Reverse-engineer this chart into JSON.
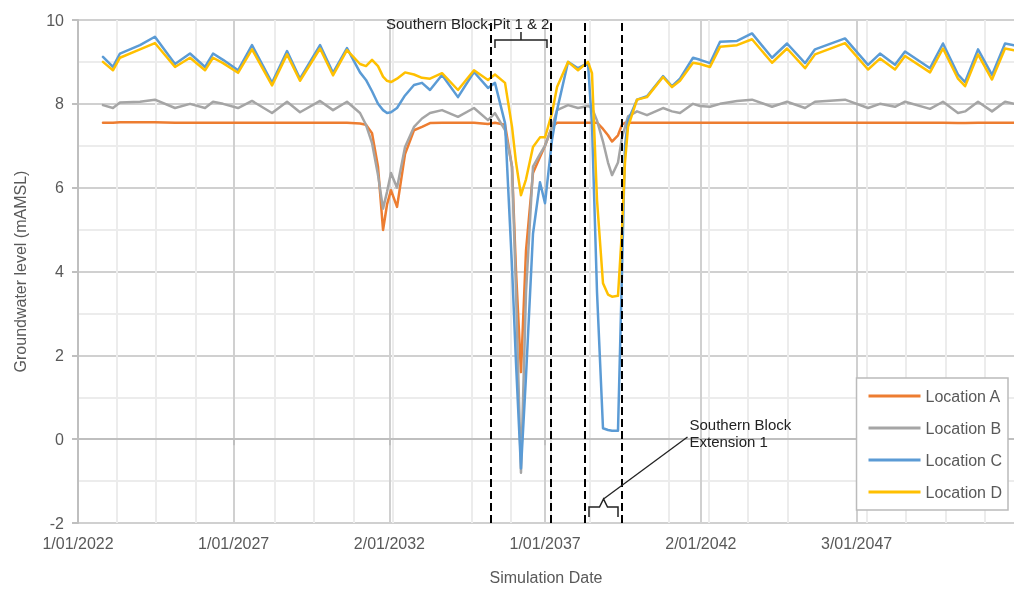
{
  "chart_data": {
    "type": "line",
    "xlabel": "Simulation Date",
    "ylabel": "Groundwater level (mAMSL)",
    "x": [
      "2022-10-21",
      "2023-02-15",
      "2023-05-08",
      "2023-12-29",
      "2024-06-21",
      "2025-02-12",
      "2025-08-07",
      "2026-01-30",
      "2026-05-04",
      "2026-08-29",
      "2027-02-21",
      "2027-08-04",
      "2028-03-26",
      "2028-09-18",
      "2029-02-17",
      "2029-10-10",
      "2030-03-11",
      "2030-08-22",
      "2031-01-22",
      "2031-04-02",
      "2031-06-12",
      "2031-08-21",
      "2031-10-19",
      "2031-12-05",
      "2032-01-20",
      "2032-03-31",
      "2032-07-03",
      "2032-10-16",
      "2033-01-18",
      "2033-04-22",
      "2033-09-10",
      "2034-03-16",
      "2034-09-20",
      "2035-03-03",
      "2035-05-24",
      "2035-09-19",
      "2035-12-10",
      "2036-01-26",
      "2036-03-24",
      "2036-05-22",
      "2036-08-12",
      "2036-11-02",
      "2036-12-31",
      "2037-03-23",
      "2037-05-21",
      "2037-09-27",
      "2038-01-22",
      "2038-05-19",
      "2038-07-05",
      "2038-09-02",
      "2038-11-11",
      "2039-01-09",
      "2039-02-25",
      "2039-05-06",
      "2039-06-22",
      "2039-07-27",
      "2039-09-01",
      "2039-12-15",
      "2040-04-10",
      "2040-10-15",
      "2041-01-29",
      "2041-05-02",
      "2041-10-02",
      "2041-12-23",
      "2042-04-19",
      "2042-08-15",
      "2043-03-02",
      "2043-08-25",
      "2044-04-16",
      "2044-10-09",
      "2045-05-08",
      "2045-09-02",
      "2046-08-20",
      "2047-05-17",
      "2047-10-04",
      "2048-03-28",
      "2048-07-24",
      "2049-05-13",
      "2049-10-12",
      "2050-04-06",
      "2050-06-28",
      "2050-11-27",
      "2051-05-10",
      "2051-10-10",
      "2052-01-23"
    ],
    "series": [
      {
        "name": "Location A",
        "color": "#ed7d31",
        "values": [
          7.55,
          7.55,
          7.56,
          7.56,
          7.56,
          7.55,
          7.55,
          7.55,
          7.55,
          7.55,
          7.55,
          7.55,
          7.55,
          7.55,
          7.55,
          7.55,
          7.55,
          7.55,
          7.53,
          7.5,
          7.3,
          6.5,
          4.99,
          5.6,
          5.94,
          5.54,
          6.8,
          7.37,
          7.45,
          7.54,
          7.55,
          7.55,
          7.55,
          7.52,
          7.55,
          7.5,
          6.5,
          4.0,
          1.6,
          4.5,
          6.35,
          6.73,
          7.0,
          7.45,
          7.55,
          7.55,
          7.55,
          7.55,
          7.55,
          7.55,
          7.4,
          7.25,
          7.1,
          7.25,
          7.5,
          7.55,
          7.55,
          7.55,
          7.55,
          7.55,
          7.55,
          7.55,
          7.55,
          7.55,
          7.55,
          7.55,
          7.55,
          7.55,
          7.55,
          7.55,
          7.55,
          7.55,
          7.55,
          7.55,
          7.55,
          7.55,
          7.55,
          7.55,
          7.55,
          7.54,
          7.54,
          7.55,
          7.55,
          7.55,
          7.55
        ]
      },
      {
        "name": "Location B",
        "color": "#a5a5a5",
        "values": [
          7.97,
          7.9,
          8.03,
          8.05,
          8.1,
          7.9,
          8.0,
          7.9,
          8.05,
          8.0,
          7.9,
          8.07,
          7.78,
          8.05,
          7.8,
          8.07,
          7.85,
          8.05,
          7.78,
          7.5,
          7.06,
          6.3,
          5.5,
          5.9,
          6.35,
          6.0,
          6.97,
          7.45,
          7.65,
          7.78,
          7.85,
          7.69,
          7.9,
          7.61,
          7.78,
          7.37,
          6.5,
          3.5,
          -0.8,
          3.5,
          6.5,
          6.8,
          7.0,
          7.45,
          7.85,
          7.97,
          7.9,
          7.95,
          7.9,
          7.6,
          7.1,
          6.6,
          6.3,
          6.6,
          7.2,
          7.45,
          7.7,
          7.82,
          7.73,
          7.9,
          7.82,
          7.78,
          8.0,
          7.95,
          7.93,
          8.0,
          8.07,
          8.1,
          7.93,
          8.05,
          7.9,
          8.05,
          8.1,
          7.9,
          8.0,
          7.93,
          8.05,
          7.88,
          8.05,
          7.78,
          7.82,
          8.05,
          7.82,
          8.05,
          8.0
        ]
      },
      {
        "name": "Location C",
        "color": "#5b9bd5",
        "values": [
          9.12,
          8.88,
          9.2,
          9.4,
          9.6,
          8.95,
          9.2,
          8.88,
          9.2,
          9.05,
          8.8,
          9.4,
          8.5,
          9.26,
          8.6,
          9.4,
          8.74,
          9.33,
          8.75,
          8.57,
          8.3,
          8.0,
          7.85,
          7.78,
          7.8,
          7.9,
          8.2,
          8.45,
          8.5,
          8.33,
          8.69,
          8.16,
          8.76,
          8.38,
          8.5,
          7.54,
          4.1,
          1.8,
          -0.7,
          1.5,
          4.9,
          6.13,
          5.63,
          7.14,
          7.85,
          9.0,
          8.85,
          8.97,
          7.5,
          3.5,
          0.26,
          0.22,
          0.2,
          0.2,
          4.0,
          7.0,
          7.6,
          8.1,
          8.18,
          8.66,
          8.42,
          8.6,
          9.1,
          9.05,
          8.97,
          9.48,
          9.5,
          9.68,
          9.1,
          9.44,
          8.97,
          9.3,
          9.56,
          8.93,
          9.2,
          8.93,
          9.25,
          8.85,
          9.44,
          8.7,
          8.52,
          9.3,
          8.69,
          9.44,
          9.4
        ]
      },
      {
        "name": "Location D",
        "color": "#ffc000",
        "values": [
          9.0,
          8.8,
          9.1,
          9.3,
          9.45,
          8.88,
          9.1,
          8.8,
          9.1,
          8.97,
          8.74,
          9.3,
          8.44,
          9.18,
          8.55,
          9.32,
          8.68,
          9.28,
          8.95,
          8.9,
          9.05,
          8.9,
          8.65,
          8.55,
          8.52,
          8.6,
          8.75,
          8.7,
          8.62,
          8.6,
          8.73,
          8.33,
          8.8,
          8.57,
          8.7,
          8.5,
          7.45,
          6.6,
          5.82,
          6.2,
          6.97,
          7.2,
          7.2,
          7.78,
          8.4,
          9.0,
          8.8,
          9.0,
          8.73,
          5.7,
          3.72,
          3.45,
          3.4,
          3.42,
          5.0,
          6.6,
          7.45,
          8.1,
          8.16,
          8.64,
          8.4,
          8.55,
          8.98,
          8.95,
          8.88,
          9.36,
          9.4,
          9.54,
          8.98,
          9.32,
          8.85,
          9.18,
          9.45,
          8.82,
          9.08,
          8.82,
          9.14,
          8.75,
          9.32,
          8.6,
          8.42,
          9.18,
          8.58,
          9.32,
          9.28
        ]
      }
    ],
    "xlim": [
      "2022-01-01",
      "2052-01-23"
    ],
    "xticks": [
      {
        "value": "2022-01-01",
        "label": "1/01/2022"
      },
      {
        "value": "2027-01-01",
        "label": "1/01/2027"
      },
      {
        "value": "2032-01-02",
        "label": "2/01/2032"
      },
      {
        "value": "2037-01-01",
        "label": "1/01/2037"
      },
      {
        "value": "2042-01-02",
        "label": "2/01/2042"
      },
      {
        "value": "2047-01-03",
        "label": "3/01/2047"
      }
    ],
    "ylim": [
      -2,
      10
    ],
    "yticks": [
      -2,
      0,
      2,
      4,
      6,
      8,
      10
    ],
    "ref_lines": [
      {
        "axis": "x",
        "value": "2035-04-07",
        "color": "#000000",
        "line_style": "dashed"
      },
      {
        "axis": "x",
        "value": "2037-03-11",
        "color": "#000000",
        "line_style": "dashed"
      },
      {
        "axis": "x",
        "value": "2038-04-14",
        "color": "#000000",
        "line_style": "dashed"
      },
      {
        "axis": "x",
        "value": "2039-06-22",
        "color": "#000000",
        "line_style": "dashed"
      }
    ],
    "annotations": [
      "Southern Block-Pit 1 & 2",
      "Southern Block\nExtension 1"
    ],
    "grid": true,
    "legend": "bottom right",
    "marker": "none",
    "line_style": "solid"
  }
}
